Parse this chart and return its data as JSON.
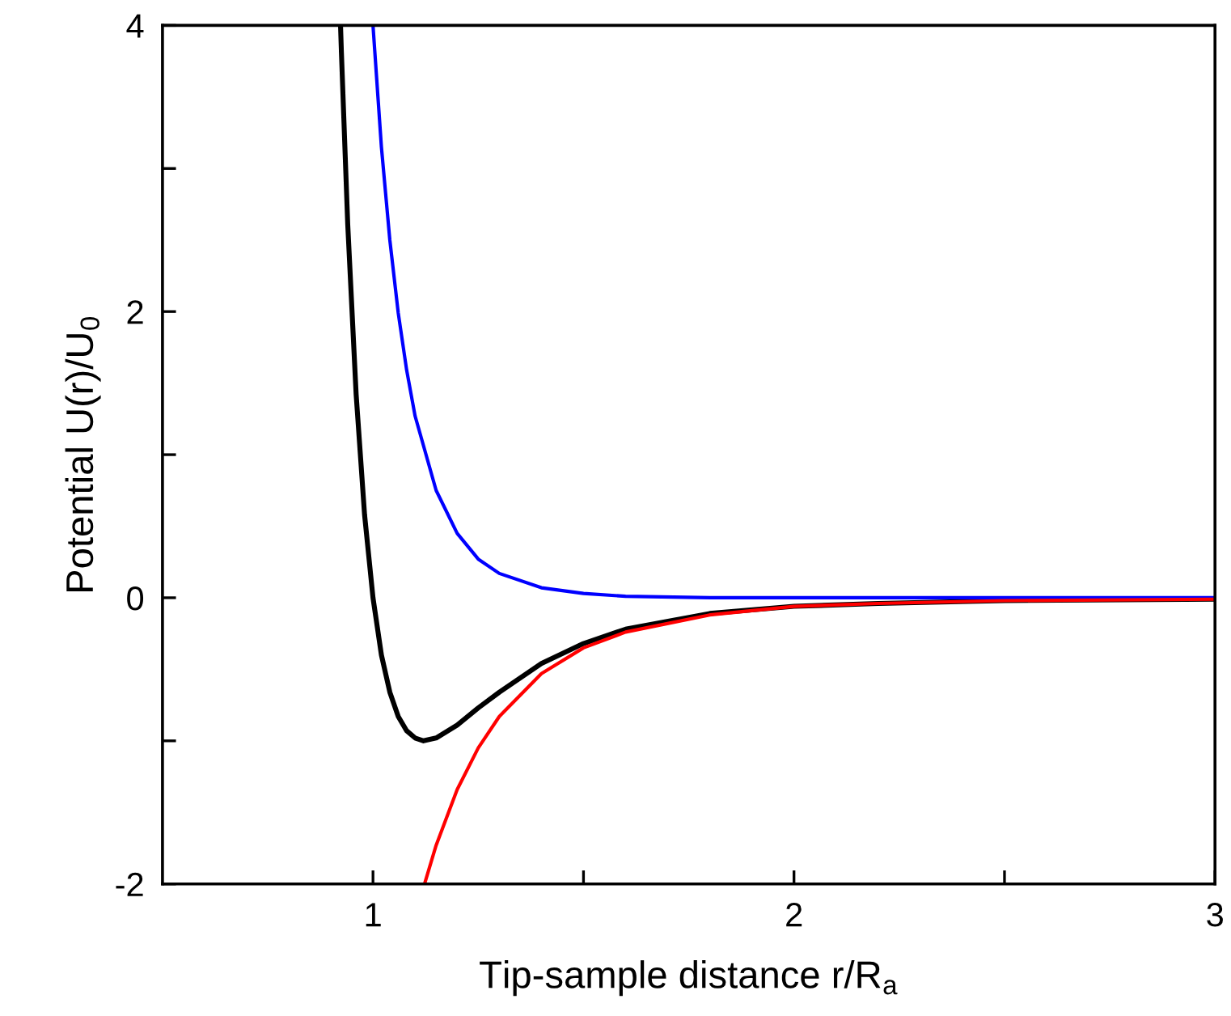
{
  "chart_data": {
    "type": "line",
    "xlabel": "Tip-sample distance r/R$_{a}$",
    "ylabel": "Potential U(r)/U$_{0}$",
    "xlim": [
      0.5,
      3
    ],
    "ylim": [
      -2,
      4
    ],
    "xticks": [
      1,
      {
        "value": 1.5,
        "label": null
      },
      2,
      {
        "value": 2.5,
        "label": null
      },
      3
    ],
    "yticks": [
      -2,
      {
        "value": -1,
        "label": null
      },
      0,
      {
        "value": 1,
        "label": null
      },
      2,
      {
        "value": 3,
        "label": null
      },
      4
    ],
    "grid": false,
    "legend": false,
    "marker": "none",
    "line_style": "solid",
    "series": [
      {
        "color": "#000000",
        "x": [
          0.923,
          0.925,
          0.94,
          0.96,
          0.98,
          1.0,
          1.02,
          1.04,
          1.06,
          1.08,
          1.1,
          1.12,
          1.15,
          1.2,
          1.25,
          1.3,
          1.4,
          1.5,
          1.6,
          1.8,
          2.0,
          2.2,
          2.5,
          3.0
        ],
        "values": [
          3.99,
          3.81,
          2.61,
          1.42,
          0.58,
          0.0,
          -0.4,
          -0.66,
          -0.83,
          -0.93,
          -0.98,
          -1.0,
          -0.98,
          -0.89,
          -0.77,
          -0.66,
          -0.46,
          -0.32,
          -0.22,
          -0.11,
          -0.06,
          -0.04,
          -0.02,
          -0.01
        ]
      },
      {
        "color": "#0000ff",
        "x": [
          1.0,
          1.02,
          1.04,
          1.06,
          1.08,
          1.1,
          1.15,
          1.2,
          1.25,
          1.3,
          1.4,
          1.5,
          1.6,
          1.8,
          2.0,
          3.0
        ],
        "values": [
          4.0,
          3.15,
          2.5,
          1.99,
          1.59,
          1.27,
          0.75,
          0.45,
          0.27,
          0.17,
          0.07,
          0.03,
          0.01,
          0.0,
          0.0,
          0.0
        ]
      },
      {
        "color": "#ff0000",
        "x": [
          1.1225,
          1.15,
          1.2,
          1.25,
          1.3,
          1.4,
          1.5,
          1.6,
          1.8,
          2.0,
          2.2,
          2.5,
          3.0
        ],
        "values": [
          -2.0,
          -1.73,
          -1.34,
          -1.05,
          -0.83,
          -0.53,
          -0.35,
          -0.24,
          -0.12,
          -0.06,
          -0.04,
          -0.02,
          -0.01
        ]
      }
    ]
  }
}
